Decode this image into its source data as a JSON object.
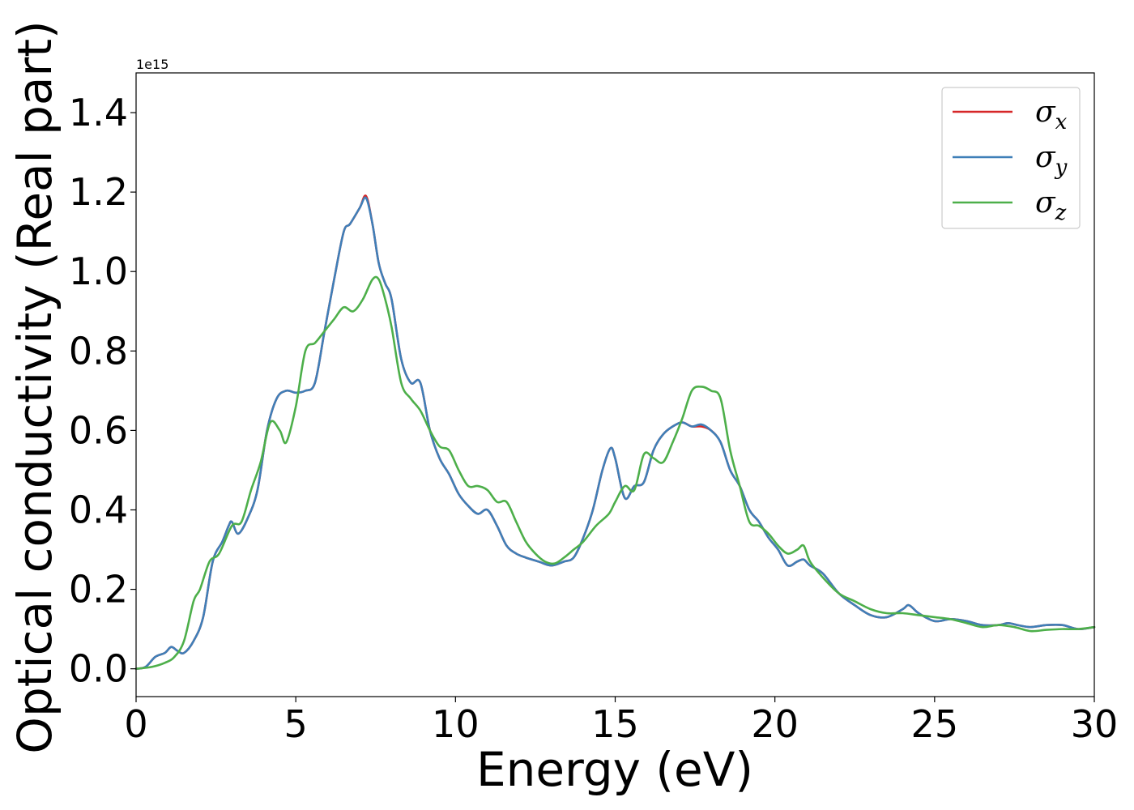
{
  "chart_data": {
    "type": "line",
    "xlabel": "Energy (eV)",
    "ylabel": "Optical conductivity (Real part)",
    "y_offset_label": "1e15",
    "xlim": [
      0,
      30
    ],
    "ylim": [
      -0.07,
      1.5
    ],
    "y_scale_factor": 1000000000000000.0,
    "x_ticks": [
      0,
      5,
      10,
      15,
      20,
      25,
      30
    ],
    "x_tick_labels": [
      "0",
      "5",
      "10",
      "15",
      "20",
      "25",
      "30"
    ],
    "y_ticks": [
      0.0,
      0.2,
      0.4,
      0.6,
      0.8,
      1.0,
      1.2,
      1.4
    ],
    "y_tick_labels": [
      "0.0",
      "0.2",
      "0.4",
      "0.6",
      "0.8",
      "1.0",
      "1.2",
      "1.4"
    ],
    "grid": false,
    "legend_position": "top-right",
    "series": [
      {
        "name": "σx",
        "base": "σ",
        "sub": "x",
        "color": "#d62728",
        "x": [
          0,
          0.3,
          0.6,
          0.9,
          1.1,
          1.3,
          1.5,
          1.8,
          2.1,
          2.4,
          2.7,
          2.9,
          3.0,
          3.2,
          3.5,
          3.8,
          4.1,
          4.4,
          4.7,
          5.0,
          5.3,
          5.6,
          5.9,
          6.2,
          6.5,
          6.7,
          7.0,
          7.2,
          7.4,
          7.6,
          7.8,
          8.0,
          8.3,
          8.6,
          8.9,
          9.2,
          9.5,
          9.8,
          10.1,
          10.4,
          10.7,
          11.0,
          11.3,
          11.6,
          11.9,
          12.2,
          12.6,
          13.0,
          13.4,
          13.7,
          14.0,
          14.3,
          14.6,
          14.85,
          15.0,
          15.3,
          15.6,
          15.9,
          16.2,
          16.5,
          16.8,
          17.1,
          17.4,
          17.7,
          18.0,
          18.3,
          18.6,
          18.9,
          19.2,
          19.5,
          19.8,
          20.1,
          20.4,
          20.7,
          20.9,
          21.1,
          21.5,
          22.0,
          22.5,
          23.0,
          23.5,
          24.0,
          24.2,
          24.5,
          25.0,
          25.5,
          26.0,
          26.5,
          27.0,
          27.3,
          27.6,
          28.0,
          28.5,
          29.0,
          29.5,
          30.0
        ],
        "values": [
          0.0,
          0.005,
          0.03,
          0.04,
          0.055,
          0.045,
          0.04,
          0.07,
          0.13,
          0.27,
          0.32,
          0.36,
          0.37,
          0.34,
          0.38,
          0.45,
          0.6,
          0.68,
          0.7,
          0.695,
          0.7,
          0.72,
          0.85,
          0.98,
          1.1,
          1.12,
          1.16,
          1.19,
          1.12,
          1.02,
          0.97,
          0.93,
          0.78,
          0.72,
          0.72,
          0.6,
          0.53,
          0.49,
          0.44,
          0.41,
          0.39,
          0.4,
          0.36,
          0.31,
          0.29,
          0.28,
          0.27,
          0.26,
          0.27,
          0.28,
          0.33,
          0.4,
          0.5,
          0.555,
          0.53,
          0.43,
          0.46,
          0.47,
          0.55,
          0.59,
          0.61,
          0.62,
          0.61,
          0.61,
          0.6,
          0.57,
          0.5,
          0.46,
          0.4,
          0.37,
          0.33,
          0.3,
          0.26,
          0.27,
          0.275,
          0.26,
          0.24,
          0.19,
          0.16,
          0.135,
          0.13,
          0.15,
          0.16,
          0.14,
          0.12,
          0.125,
          0.12,
          0.11,
          0.11,
          0.115,
          0.11,
          0.105,
          0.11,
          0.11,
          0.1,
          0.105
        ]
      },
      {
        "name": "σy",
        "base": "σ",
        "sub": "y",
        "color": "#3f7fb8",
        "x": [
          0,
          0.3,
          0.6,
          0.9,
          1.1,
          1.3,
          1.5,
          1.8,
          2.1,
          2.4,
          2.7,
          2.9,
          3.0,
          3.2,
          3.5,
          3.8,
          4.1,
          4.4,
          4.7,
          5.0,
          5.3,
          5.6,
          5.9,
          6.2,
          6.5,
          6.7,
          7.0,
          7.2,
          7.4,
          7.6,
          7.8,
          8.0,
          8.3,
          8.6,
          8.9,
          9.2,
          9.5,
          9.8,
          10.1,
          10.4,
          10.7,
          11.0,
          11.3,
          11.6,
          11.9,
          12.2,
          12.6,
          13.0,
          13.4,
          13.7,
          14.0,
          14.3,
          14.6,
          14.85,
          15.0,
          15.3,
          15.6,
          15.9,
          16.2,
          16.5,
          16.8,
          17.1,
          17.4,
          17.7,
          18.0,
          18.3,
          18.6,
          18.9,
          19.2,
          19.5,
          19.8,
          20.1,
          20.4,
          20.7,
          20.9,
          21.1,
          21.5,
          22.0,
          22.5,
          23.0,
          23.5,
          24.0,
          24.2,
          24.5,
          25.0,
          25.5,
          26.0,
          26.5,
          27.0,
          27.3,
          27.6,
          28.0,
          28.5,
          29.0,
          29.5,
          30.0
        ],
        "values": [
          0.0,
          0.005,
          0.03,
          0.04,
          0.055,
          0.045,
          0.04,
          0.07,
          0.13,
          0.27,
          0.32,
          0.36,
          0.37,
          0.34,
          0.38,
          0.45,
          0.6,
          0.68,
          0.7,
          0.695,
          0.7,
          0.72,
          0.85,
          0.98,
          1.1,
          1.12,
          1.16,
          1.185,
          1.12,
          1.02,
          0.97,
          0.93,
          0.78,
          0.72,
          0.72,
          0.6,
          0.53,
          0.49,
          0.44,
          0.41,
          0.39,
          0.4,
          0.36,
          0.31,
          0.29,
          0.28,
          0.27,
          0.26,
          0.27,
          0.28,
          0.33,
          0.4,
          0.5,
          0.555,
          0.53,
          0.43,
          0.46,
          0.47,
          0.55,
          0.59,
          0.61,
          0.62,
          0.61,
          0.615,
          0.6,
          0.57,
          0.5,
          0.46,
          0.4,
          0.37,
          0.33,
          0.3,
          0.26,
          0.27,
          0.275,
          0.26,
          0.24,
          0.19,
          0.16,
          0.135,
          0.13,
          0.15,
          0.16,
          0.14,
          0.12,
          0.125,
          0.12,
          0.11,
          0.11,
          0.115,
          0.11,
          0.105,
          0.11,
          0.11,
          0.1,
          0.105
        ]
      },
      {
        "name": "σz",
        "base": "σ",
        "sub": "z",
        "color": "#4daf4a",
        "x": [
          0,
          0.5,
          0.9,
          1.2,
          1.5,
          1.8,
          2.0,
          2.3,
          2.6,
          3.0,
          3.3,
          3.6,
          3.9,
          4.2,
          4.5,
          4.7,
          5.0,
          5.3,
          5.6,
          5.9,
          6.2,
          6.5,
          6.8,
          7.1,
          7.4,
          7.6,
          7.8,
          8.0,
          8.3,
          8.6,
          8.9,
          9.2,
          9.5,
          9.8,
          10.1,
          10.4,
          10.7,
          11.0,
          11.3,
          11.6,
          11.9,
          12.2,
          12.5,
          12.8,
          13.1,
          13.4,
          13.7,
          14.0,
          14.4,
          14.8,
          15.0,
          15.3,
          15.6,
          15.9,
          16.2,
          16.5,
          16.8,
          17.1,
          17.4,
          17.7,
          18.0,
          18.3,
          18.6,
          18.9,
          19.2,
          19.5,
          19.8,
          20.1,
          20.4,
          20.7,
          20.9,
          21.1,
          21.5,
          22.0,
          22.5,
          23.0,
          23.5,
          24.0,
          24.5,
          25.0,
          25.5,
          26.0,
          26.5,
          27.0,
          27.5,
          28.0,
          28.5,
          29.0,
          29.5,
          30.0
        ],
        "values": [
          0.0,
          0.005,
          0.015,
          0.03,
          0.07,
          0.17,
          0.2,
          0.27,
          0.29,
          0.36,
          0.37,
          0.45,
          0.52,
          0.62,
          0.6,
          0.57,
          0.66,
          0.8,
          0.82,
          0.85,
          0.88,
          0.91,
          0.9,
          0.93,
          0.98,
          0.98,
          0.93,
          0.86,
          0.72,
          0.68,
          0.65,
          0.6,
          0.56,
          0.55,
          0.5,
          0.46,
          0.46,
          0.45,
          0.42,
          0.42,
          0.37,
          0.32,
          0.29,
          0.27,
          0.265,
          0.28,
          0.3,
          0.32,
          0.36,
          0.39,
          0.42,
          0.46,
          0.45,
          0.54,
          0.53,
          0.52,
          0.57,
          0.63,
          0.7,
          0.71,
          0.7,
          0.68,
          0.55,
          0.46,
          0.37,
          0.36,
          0.34,
          0.31,
          0.29,
          0.3,
          0.31,
          0.27,
          0.23,
          0.19,
          0.17,
          0.15,
          0.14,
          0.14,
          0.135,
          0.13,
          0.125,
          0.115,
          0.105,
          0.11,
          0.105,
          0.095,
          0.098,
          0.1,
          0.1,
          0.105
        ]
      }
    ]
  }
}
